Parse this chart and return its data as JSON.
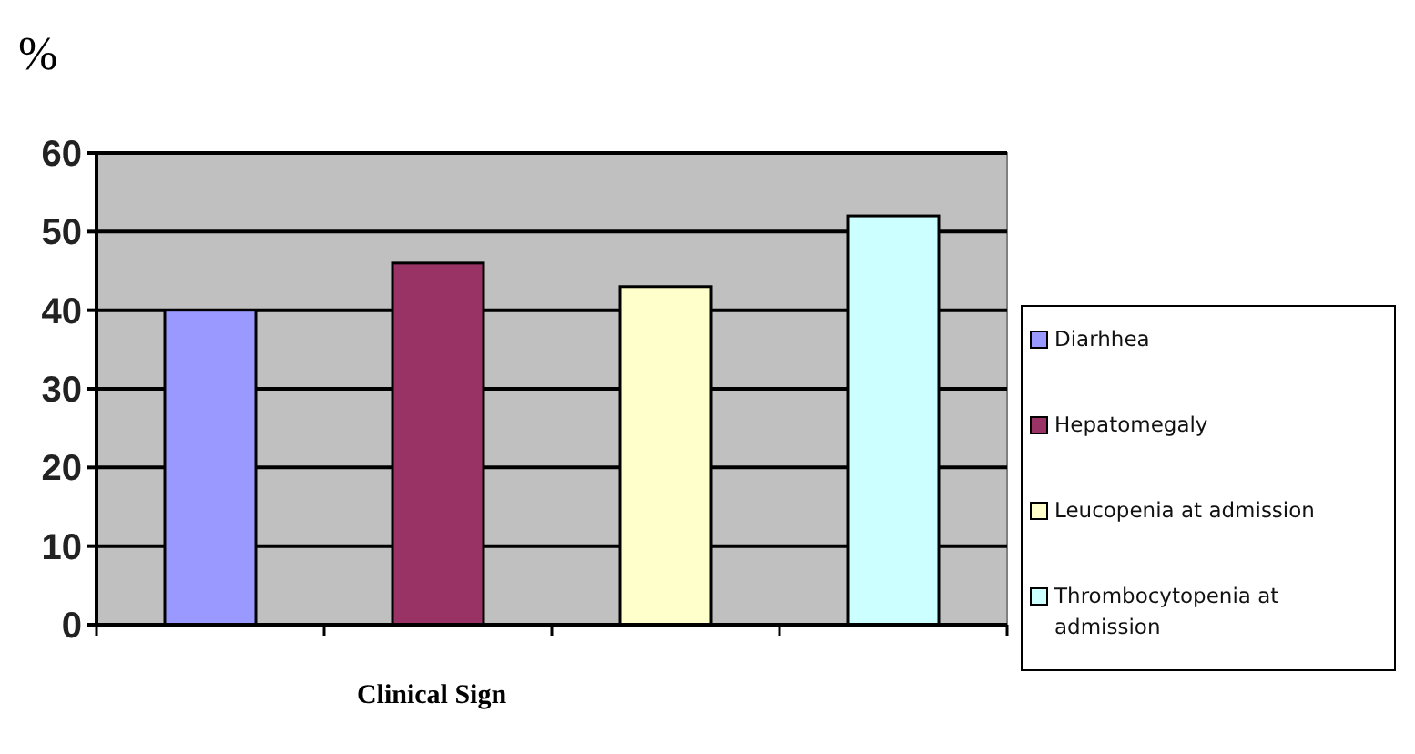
{
  "chart_data": {
    "type": "bar",
    "ylabel": "%",
    "xlabel": "Clinical Sign",
    "categories": [
      null,
      null,
      null,
      null
    ],
    "series": [
      {
        "name": "Diarhhea",
        "color": "#9999ff",
        "values": [
          40,
          null,
          null,
          null
        ]
      },
      {
        "name": "Hepatomegaly",
        "color": "#993366",
        "values": [
          null,
          46,
          null,
          null
        ]
      },
      {
        "name": "Leucopenia at admission",
        "color": "#ffffcc",
        "values": [
          null,
          null,
          43,
          null
        ]
      },
      {
        "name": "Thrombocytopenia at admission",
        "color": "#ccffff",
        "values": [
          null,
          null,
          null,
          52
        ]
      }
    ],
    "ylim": [
      0,
      60
    ],
    "yticks": [
      0,
      10,
      20,
      30,
      40,
      50,
      60
    ],
    "grid": "y",
    "legend": "right"
  }
}
